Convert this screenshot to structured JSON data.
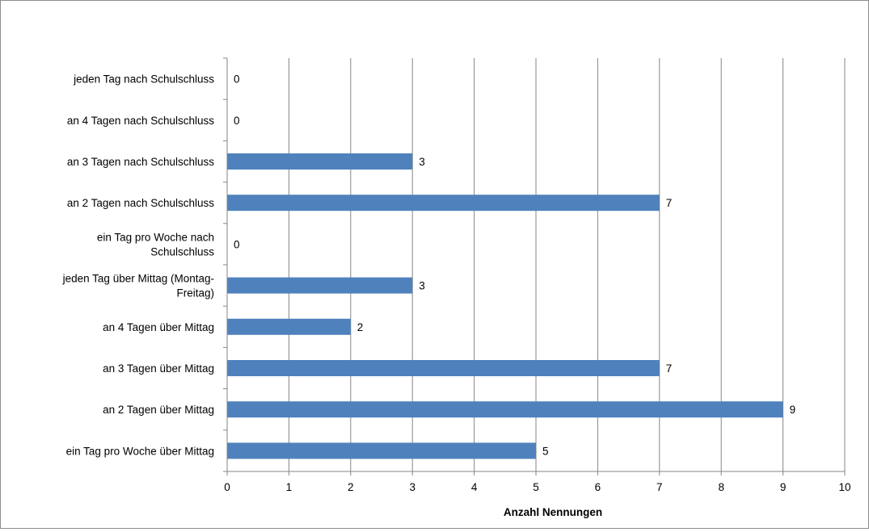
{
  "chart_data": {
    "type": "bar",
    "orientation": "horizontal",
    "categories": [
      [
        "jeden Tag nach Schulschluss"
      ],
      [
        "an 4 Tagen nach Schulschluss"
      ],
      [
        "an 3 Tagen nach Schulschluss"
      ],
      [
        "an 2 Tagen nach Schulschluss"
      ],
      [
        "ein Tag pro Woche nach",
        "Schulschluss"
      ],
      [
        "jeden Tag über Mittag (Montag-",
        "Freitag)"
      ],
      [
        "an 4 Tagen über Mittag"
      ],
      [
        "an 3 Tagen über Mittag"
      ],
      [
        "an 2 Tagen über Mittag"
      ],
      [
        "ein Tag pro Woche über Mittag"
      ]
    ],
    "values": [
      0,
      0,
      3,
      7,
      0,
      3,
      2,
      7,
      9,
      5
    ],
    "xlabel": "Anzahl Nennungen",
    "ylabel": "",
    "xlim": [
      0,
      10
    ],
    "xticks": [
      "0",
      "1",
      "2",
      "3",
      "4",
      "5",
      "6",
      "7",
      "8",
      "9",
      "10"
    ],
    "grid": "vertical",
    "data_labels": true,
    "bar_color": "#4f81bd",
    "gridline_color": "#868686"
  }
}
